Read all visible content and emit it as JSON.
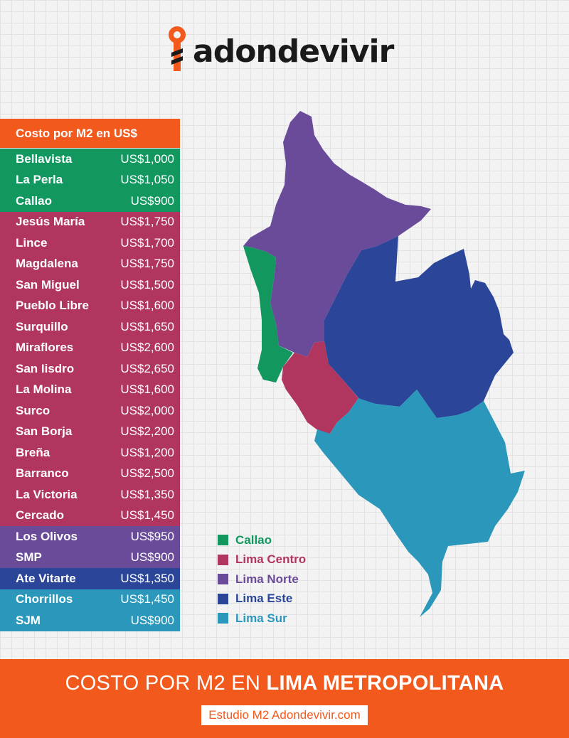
{
  "brand": {
    "name": "adondevivir"
  },
  "table": {
    "header": "Costo por M2 en US$",
    "rows": [
      {
        "name": "Bellavista",
        "price": "US$1,000",
        "zone": "callao"
      },
      {
        "name": "La Perla",
        "price": "US$1,050",
        "zone": "callao"
      },
      {
        "name": "Callao",
        "price": "US$900",
        "zone": "callao"
      },
      {
        "name": "Jesús María",
        "price": "US$1,750",
        "zone": "centro"
      },
      {
        "name": "Lince",
        "price": "US$1,700",
        "zone": "centro"
      },
      {
        "name": "Magdalena",
        "price": "US$1,750",
        "zone": "centro"
      },
      {
        "name": "San Miguel",
        "price": "US$1,500",
        "zone": "centro"
      },
      {
        "name": "Pueblo Libre",
        "price": "US$1,600",
        "zone": "centro"
      },
      {
        "name": "Surquillo",
        "price": "US$1,650",
        "zone": "centro"
      },
      {
        "name": "Miraflores",
        "price": "US$2,600",
        "zone": "centro"
      },
      {
        "name": "San Iisdro",
        "price": "US$2,650",
        "zone": "centro"
      },
      {
        "name": "La Molina",
        "price": "US$1,600",
        "zone": "centro"
      },
      {
        "name": "Surco",
        "price": "US$2,000",
        "zone": "centro"
      },
      {
        "name": "San Borja",
        "price": "US$2,200",
        "zone": "centro"
      },
      {
        "name": "Breña",
        "price": "US$1,200",
        "zone": "centro"
      },
      {
        "name": "Barranco",
        "price": "US$2,500",
        "zone": "centro"
      },
      {
        "name": "La Victoria",
        "price": "US$1,350",
        "zone": "centro"
      },
      {
        "name": "Cercado",
        "price": "US$1,450",
        "zone": "centro"
      },
      {
        "name": "Los Olivos",
        "price": "US$950",
        "zone": "norte"
      },
      {
        "name": "SMP",
        "price": "US$900",
        "zone": "norte"
      },
      {
        "name": "Ate Vitarte",
        "price": "US$1,350",
        "zone": "este"
      },
      {
        "name": "Chorrillos",
        "price": "US$1,450",
        "zone": "sur"
      },
      {
        "name": "SJM",
        "price": "US$900",
        "zone": "sur"
      }
    ]
  },
  "legend": [
    {
      "key": "callao",
      "label": "Callao"
    },
    {
      "key": "centro",
      "label": "Lima Centro"
    },
    {
      "key": "norte",
      "label": "Lima Norte"
    },
    {
      "key": "este",
      "label": "Lima Este"
    },
    {
      "key": "sur",
      "label": "Lima Sur"
    }
  ],
  "colors": {
    "accent": "#f25a1d",
    "callao": "#12975f",
    "centro": "#b0355f",
    "norte": "#6a4b99",
    "este": "#2b4599",
    "sur": "#2a97bb"
  },
  "footer": {
    "title_light": "COSTO POR M2 EN ",
    "title_bold": "LIMA METROPOLITANA",
    "source": "Estudio M2 Adondevivir.com"
  }
}
